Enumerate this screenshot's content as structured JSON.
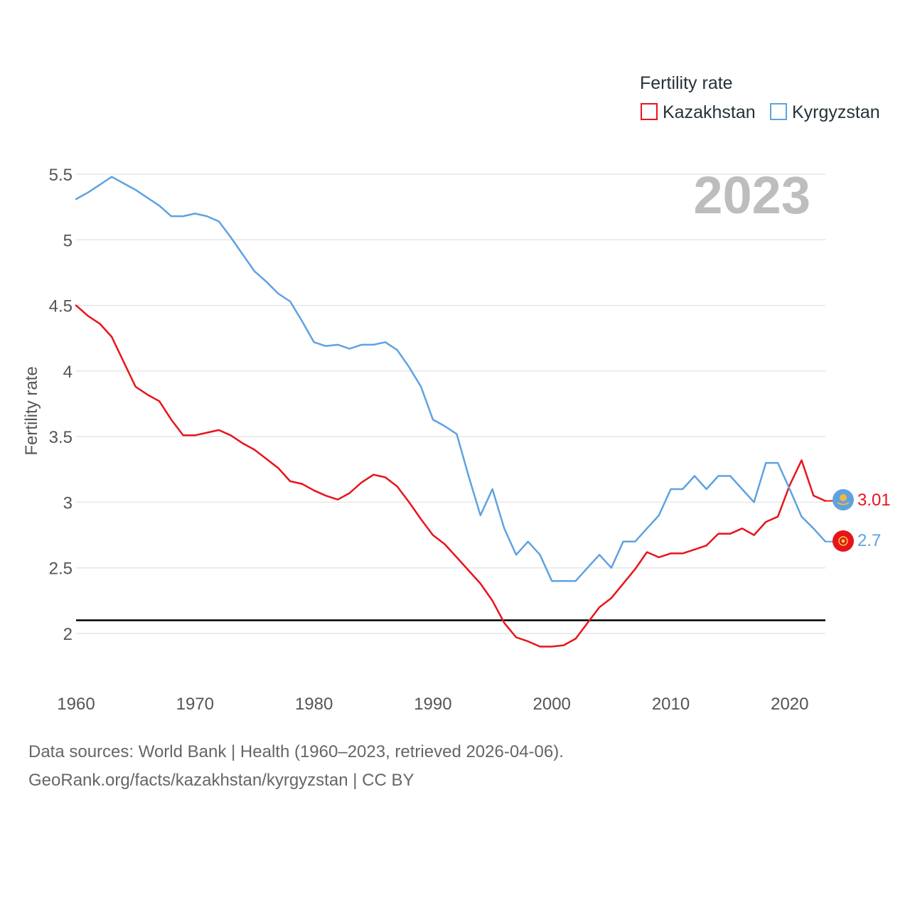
{
  "chart_data": {
    "type": "line",
    "year_label": "2023",
    "ylabel": "Fertility rate",
    "xlabel": "",
    "ylim": [
      1.75,
      5.6
    ],
    "xlim": [
      1960,
      2023
    ],
    "y_ticks": [
      2,
      2.5,
      3,
      3.5,
      4,
      4.5,
      5,
      5.5
    ],
    "y_tick_labels": [
      "2",
      "2.5",
      "3",
      "3.5",
      "4",
      "4.5",
      "5",
      "5.5"
    ],
    "x_ticks": [
      1960,
      1970,
      1980,
      1990,
      2000,
      2010,
      2020
    ],
    "x_tick_labels": [
      "1960",
      "1970",
      "1980",
      "1990",
      "2000",
      "2010",
      "2020"
    ],
    "legend": {
      "title": "Fertility rate",
      "placement": "top-right",
      "entries": [
        "Kazakhstan",
        "Kyrgyzstan"
      ]
    },
    "reference_line": {
      "value": 2.1,
      "color": "#000000"
    },
    "x": [
      1960,
      1961,
      1962,
      1963,
      1964,
      1965,
      1966,
      1967,
      1968,
      1969,
      1970,
      1971,
      1972,
      1973,
      1974,
      1975,
      1976,
      1977,
      1978,
      1979,
      1980,
      1981,
      1982,
      1983,
      1984,
      1985,
      1986,
      1987,
      1988,
      1989,
      1990,
      1991,
      1992,
      1993,
      1994,
      1995,
      1996,
      1997,
      1998,
      1999,
      2000,
      2001,
      2002,
      2003,
      2004,
      2005,
      2006,
      2007,
      2008,
      2009,
      2010,
      2011,
      2012,
      2013,
      2014,
      2015,
      2016,
      2017,
      2018,
      2019,
      2020,
      2021,
      2022,
      2023
    ],
    "series": [
      {
        "name": "Kazakhstan",
        "color": "#e8141c",
        "end_label": "3.01",
        "values": [
          4.5,
          4.42,
          4.36,
          4.26,
          4.07,
          3.88,
          3.82,
          3.77,
          3.63,
          3.51,
          3.51,
          3.53,
          3.55,
          3.51,
          3.45,
          3.4,
          3.33,
          3.26,
          3.16,
          3.14,
          3.09,
          3.05,
          3.02,
          3.07,
          3.15,
          3.21,
          3.19,
          3.12,
          3.0,
          2.87,
          2.75,
          2.68,
          2.58,
          2.48,
          2.38,
          2.25,
          2.08,
          1.97,
          1.94,
          1.9,
          1.9,
          1.91,
          1.96,
          2.08,
          2.2,
          2.27,
          2.38,
          2.49,
          2.62,
          2.58,
          2.61,
          2.61,
          2.64,
          2.67,
          2.76,
          2.76,
          2.8,
          2.75,
          2.85,
          2.89,
          3.13,
          3.32,
          3.05,
          3.01
        ]
      },
      {
        "name": "Kyrgyzstan",
        "color": "#5fa2e0",
        "end_label": "2.7",
        "values": [
          5.31,
          5.36,
          5.42,
          5.48,
          5.43,
          5.38,
          5.32,
          5.26,
          5.18,
          5.18,
          5.2,
          5.18,
          5.14,
          5.02,
          4.89,
          4.76,
          4.68,
          4.59,
          4.53,
          4.38,
          4.22,
          4.19,
          4.2,
          4.17,
          4.2,
          4.2,
          4.22,
          4.16,
          4.03,
          3.88,
          3.63,
          3.58,
          3.52,
          3.2,
          2.9,
          3.1,
          2.8,
          2.6,
          2.7,
          2.6,
          2.4,
          2.4,
          2.4,
          2.5,
          2.6,
          2.5,
          2.7,
          2.7,
          2.8,
          2.9,
          3.1,
          3.1,
          3.2,
          3.1,
          3.2,
          3.2,
          3.1,
          3.0,
          3.3,
          3.3,
          3.1,
          2.89,
          2.8,
          2.7
        ]
      }
    ]
  },
  "footer": {
    "line1": "Data sources: World Bank | Health (1960–2023, retrieved 2026-04-06).",
    "line2": "GeoRank.org/facts/kazakhstan/kyrgyzstan | CC BY"
  }
}
